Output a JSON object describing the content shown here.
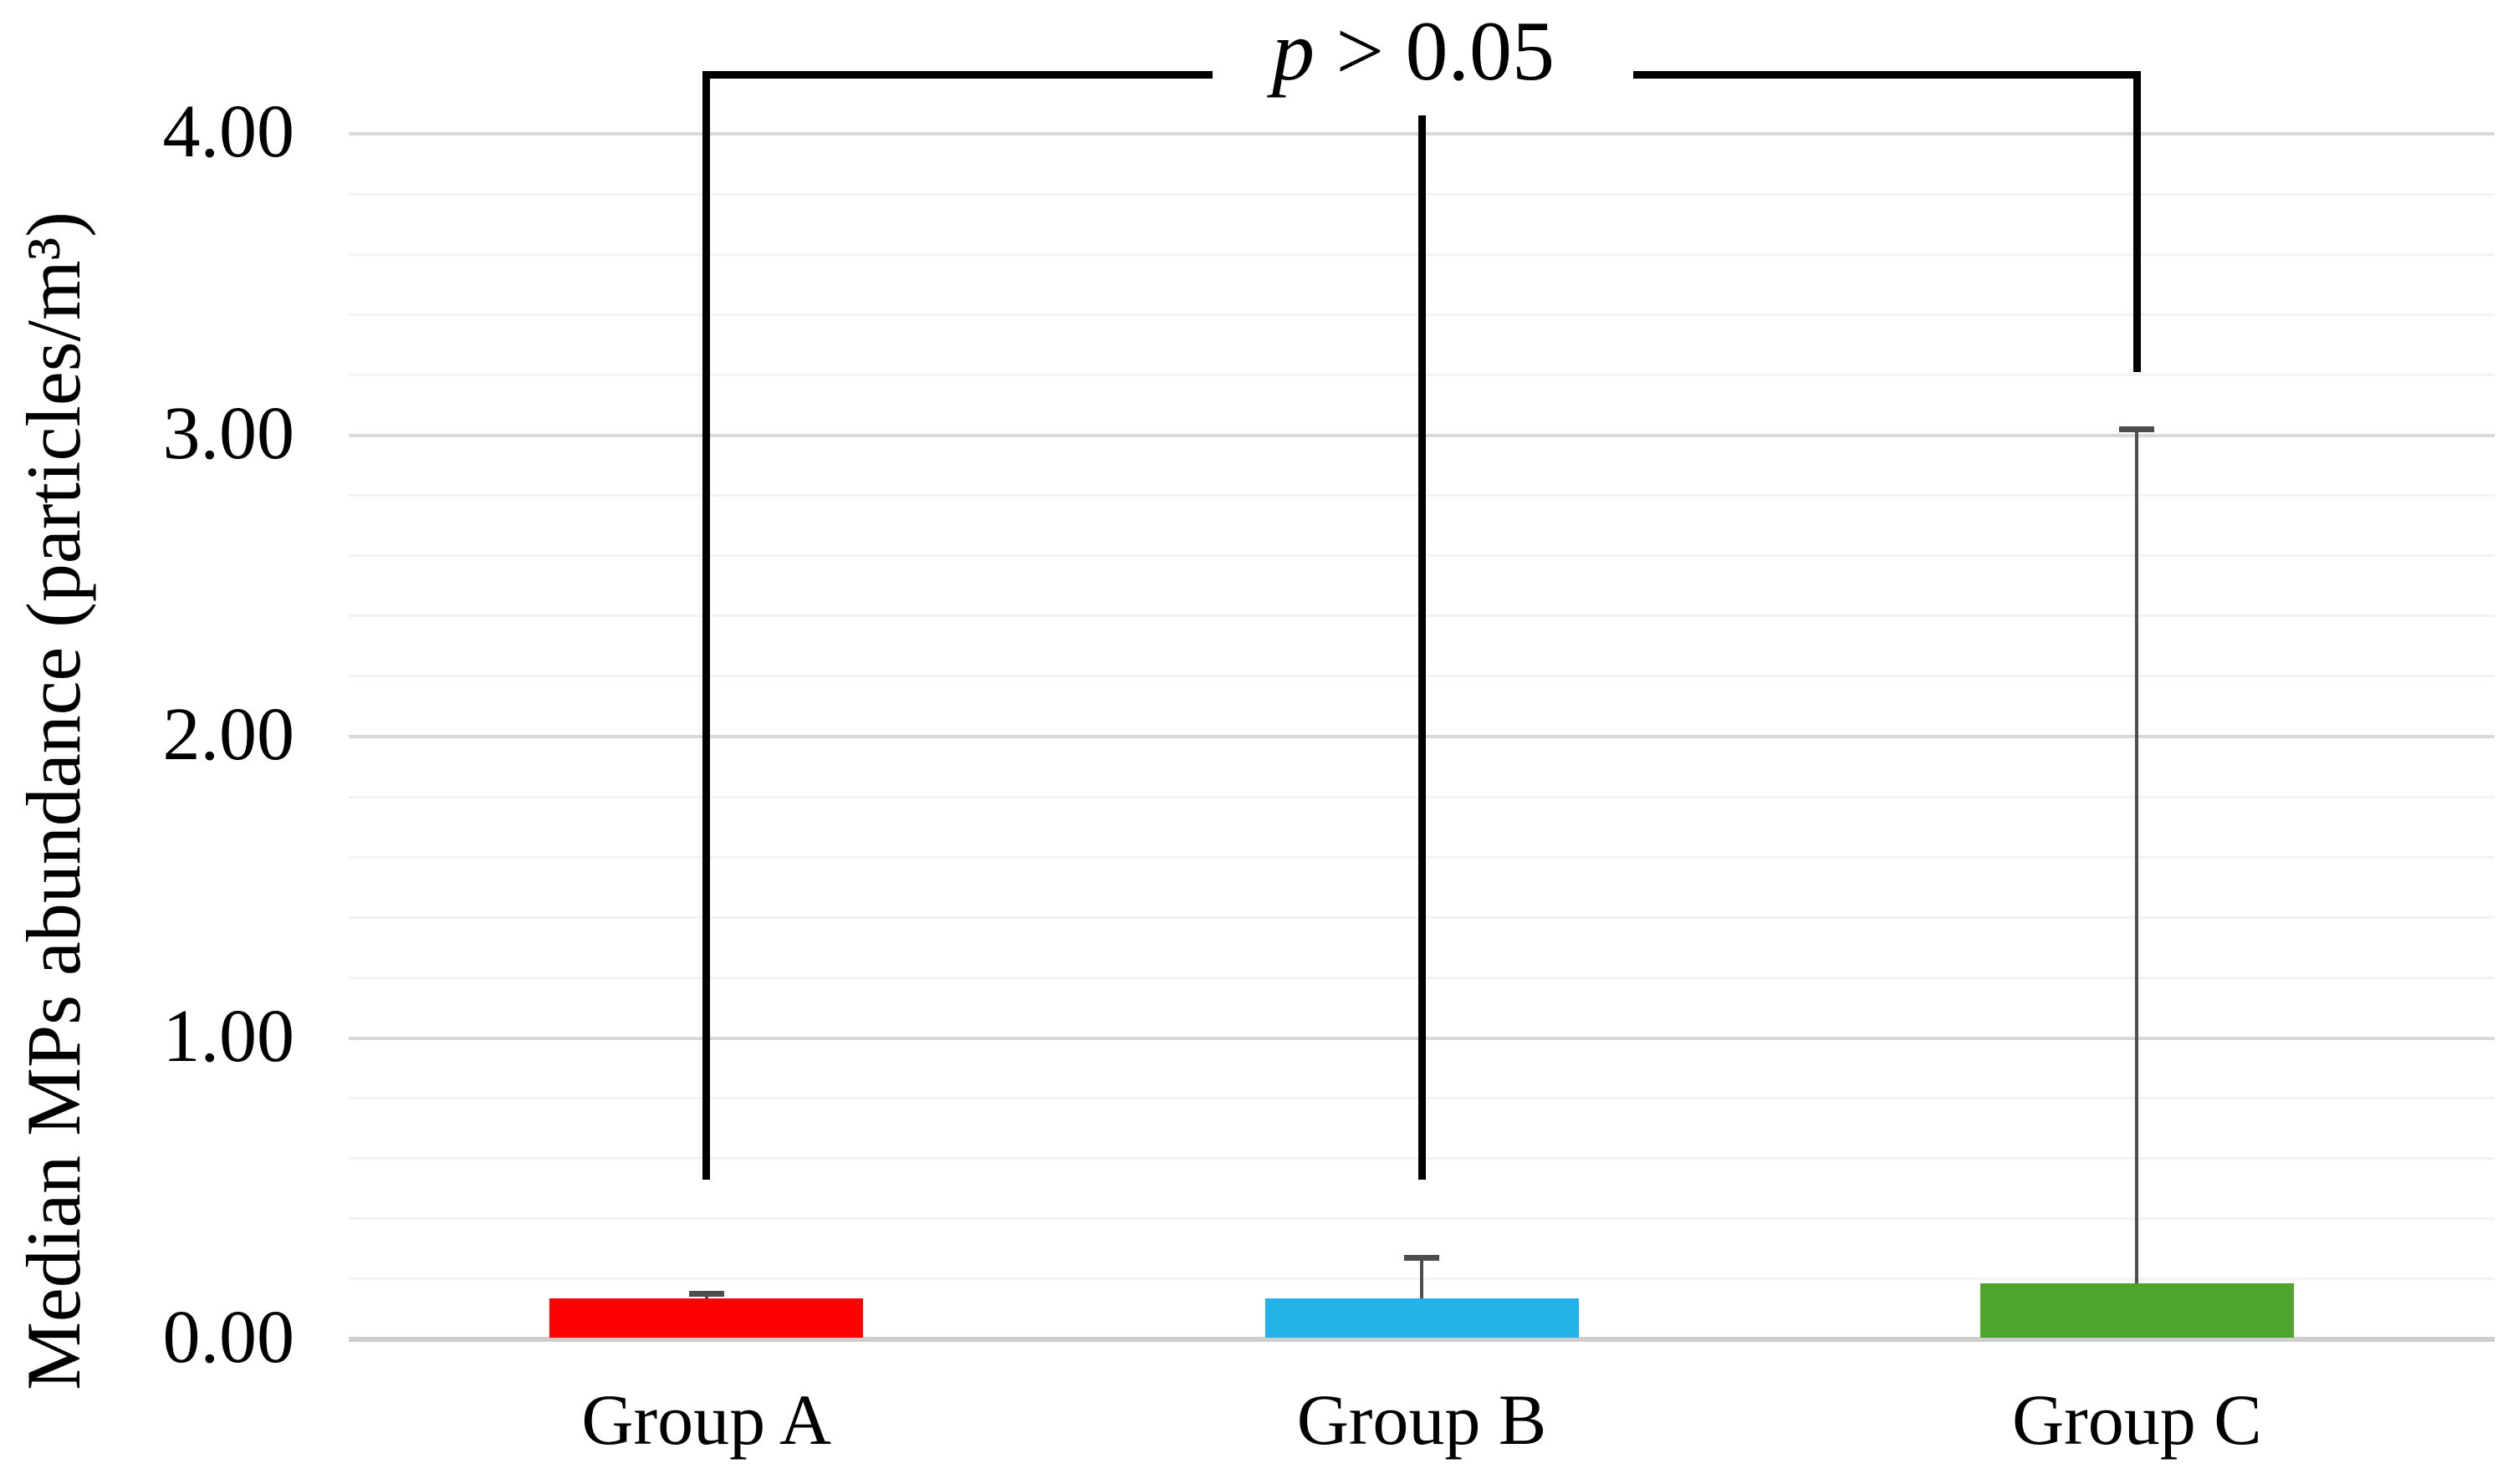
{
  "figure": {
    "background": "#ffffff"
  },
  "annotation": {
    "p_italic": "p",
    "comparison": " > 0.05",
    "full_text": "p > 0.05"
  },
  "y_axis": {
    "title": "Median MPs abundance (particles/m³)",
    "tick_labels": [
      "0.00",
      "1.00",
      "2.00",
      "3.00",
      "4.00"
    ],
    "tick_values": [
      0,
      1,
      2,
      3,
      4
    ],
    "min": 0,
    "max": 4.2,
    "major_step": 1.0,
    "minor_step": 0.2
  },
  "x_axis": {
    "categories": [
      "Group A",
      "Group B",
      "Group C"
    ]
  },
  "chart_data": {
    "type": "bar",
    "title": "",
    "xlabel": "",
    "ylabel": "Median MPs abundance (particles/m³)",
    "categories": [
      "Group A",
      "Group B",
      "Group C"
    ],
    "values": [
      0.13,
      0.13,
      0.18
    ],
    "error_top": [
      0.15,
      0.27,
      3.02
    ],
    "bar_colors": [
      "#fe0000",
      "#24b2e8",
      "#4da52f"
    ],
    "error_color": "#4d4d4d",
    "ylim": [
      0,
      4.2
    ],
    "grid": true,
    "legend": "none",
    "gridlines": {
      "minor_color": "#f2f2f2",
      "major_color": "#d9d9d9",
      "baseline_color": "#cdcdcd"
    },
    "significance_bracket": {
      "label": "p > 0.05",
      "color": "#000000",
      "bar_value": 4.2,
      "drops": [
        {
          "group": "Group A",
          "to_value": 0.53,
          "from_below_text": false
        },
        {
          "group": "Group B",
          "to_value": 0.53,
          "from_below_text": true
        },
        {
          "group": "Group C",
          "to_value": 3.21,
          "from_below_text": false
        }
      ]
    }
  }
}
